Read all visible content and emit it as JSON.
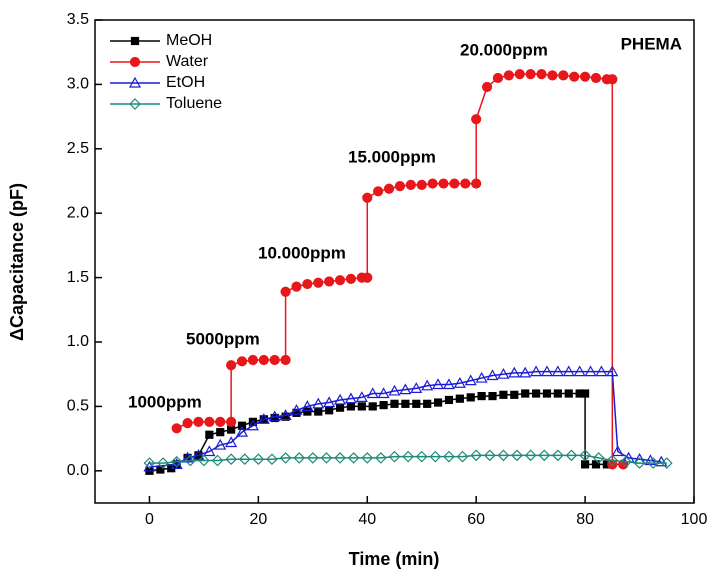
{
  "chart_data": {
    "type": "line",
    "x_label": "Time (min)",
    "y_label": "ΔCapacitance (pF)",
    "annotations": [
      "1000ppm",
      "5000ppm",
      "10.000ppm",
      "15.000ppm",
      "20.000ppm",
      "PHEMA"
    ],
    "xlim": [
      -10,
      100
    ],
    "xticks": [
      0,
      20,
      40,
      60,
      80,
      100
    ],
    "ylim": [
      -0.25,
      3.5
    ],
    "yticks": [
      {
        "value": 0,
        "label": "0.0"
      },
      0.5,
      {
        "value": 1,
        "label": "1.0"
      },
      1.5,
      {
        "value": 2,
        "label": "2.0"
      },
      2.5,
      {
        "value": 3,
        "label": "3.0"
      },
      3.5
    ],
    "legend": "top-left",
    "series": [
      {
        "name": "MeOH",
        "color": "#000000",
        "marker": "square",
        "x": [
          0,
          2,
          4,
          5,
          7,
          9,
          11,
          13,
          15,
          17,
          19,
          21,
          23,
          25,
          27,
          29,
          31,
          33,
          35,
          37,
          39,
          41,
          43,
          45,
          47,
          49,
          51,
          53,
          55,
          57,
          59,
          61,
          63,
          65,
          67,
          69,
          71,
          73,
          75,
          77,
          79,
          80,
          80,
          82,
          84
        ],
        "values": [
          0,
          0.01,
          0.02,
          0.05,
          0.1,
          0.12,
          0.28,
          0.3,
          0.32,
          0.35,
          0.38,
          0.4,
          0.41,
          0.42,
          0.45,
          0.46,
          0.46,
          0.47,
          0.49,
          0.5,
          0.5,
          0.5,
          0.51,
          0.52,
          0.52,
          0.52,
          0.52,
          0.53,
          0.55,
          0.56,
          0.57,
          0.58,
          0.58,
          0.59,
          0.59,
          0.6,
          0.6,
          0.6,
          0.6,
          0.6,
          0.6,
          0.6,
          0.05,
          0.05,
          0.05
        ]
      },
      {
        "name": "Water",
        "color": "#e8171b",
        "marker": "circle",
        "x": [
          5,
          7,
          9,
          11,
          13,
          15,
          15,
          17,
          19,
          21,
          23,
          25,
          25,
          27,
          29,
          31,
          33,
          35,
          37,
          39,
          40,
          40,
          42,
          44,
          46,
          48,
          50,
          52,
          54,
          56,
          58,
          60,
          60,
          62,
          64,
          66,
          68,
          70,
          72,
          74,
          76,
          78,
          80,
          82,
          84,
          85,
          85,
          87
        ],
        "values": [
          0.33,
          0.37,
          0.38,
          0.38,
          0.38,
          0.38,
          0.82,
          0.85,
          0.86,
          0.86,
          0.86,
          0.86,
          1.39,
          1.43,
          1.45,
          1.46,
          1.47,
          1.48,
          1.49,
          1.5,
          1.5,
          2.12,
          2.17,
          2.19,
          2.21,
          2.22,
          2.22,
          2.23,
          2.23,
          2.23,
          2.23,
          2.23,
          2.73,
          2.98,
          3.05,
          3.07,
          3.08,
          3.08,
          3.08,
          3.07,
          3.07,
          3.06,
          3.06,
          3.05,
          3.04,
          3.04,
          0.05,
          0.05
        ]
      },
      {
        "name": "EtOH",
        "color": "#1c1cd6",
        "marker": "triangle",
        "x": [
          0,
          5,
          7,
          9,
          11,
          13,
          15,
          17,
          19,
          21,
          23,
          25,
          27,
          29,
          31,
          33,
          35,
          37,
          39,
          41,
          43,
          45,
          47,
          49,
          51,
          53,
          55,
          57,
          59,
          61,
          63,
          65,
          67,
          69,
          71,
          73,
          75,
          77,
          79,
          81,
          83,
          85,
          86,
          88,
          90,
          92,
          94
        ],
        "values": [
          0.03,
          0.05,
          0.1,
          0.12,
          0.15,
          0.2,
          0.22,
          0.3,
          0.35,
          0.4,
          0.42,
          0.43,
          0.47,
          0.5,
          0.52,
          0.53,
          0.55,
          0.56,
          0.57,
          0.6,
          0.6,
          0.62,
          0.63,
          0.64,
          0.66,
          0.67,
          0.67,
          0.68,
          0.7,
          0.72,
          0.74,
          0.75,
          0.76,
          0.76,
          0.77,
          0.77,
          0.77,
          0.77,
          0.77,
          0.77,
          0.77,
          0.77,
          0.15,
          0.1,
          0.09,
          0.08,
          0.07
        ]
      },
      {
        "name": "Toluene",
        "color": "#1f8a7a",
        "marker": "diamond",
        "x": [
          0,
          2.5,
          5,
          7.5,
          10,
          12.5,
          15,
          17.5,
          20,
          22.5,
          25,
          27.5,
          30,
          32.5,
          35,
          37.5,
          40,
          42.5,
          45,
          47.5,
          50,
          52.5,
          55,
          57.5,
          60,
          62.5,
          65,
          67.5,
          70,
          72.5,
          75,
          77.5,
          80,
          82.5,
          85,
          87.5,
          90,
          92.5,
          95
        ],
        "values": [
          0.06,
          0.06,
          0.07,
          0.08,
          0.08,
          0.08,
          0.09,
          0.09,
          0.09,
          0.09,
          0.1,
          0.1,
          0.1,
          0.1,
          0.1,
          0.1,
          0.1,
          0.1,
          0.11,
          0.11,
          0.11,
          0.11,
          0.11,
          0.11,
          0.12,
          0.12,
          0.12,
          0.12,
          0.12,
          0.12,
          0.12,
          0.12,
          0.12,
          0.1,
          0.08,
          0.07,
          0.06,
          0.06,
          0.06
        ]
      }
    ]
  }
}
